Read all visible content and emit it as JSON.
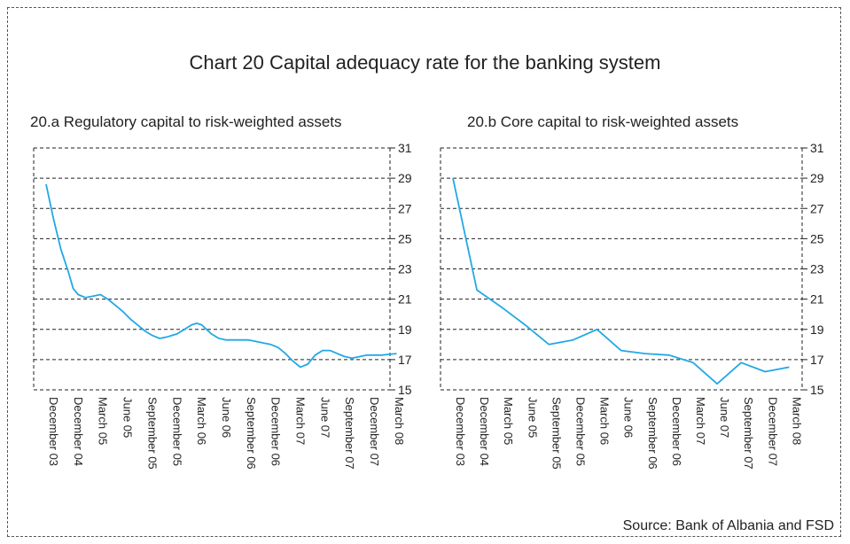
{
  "title": "Chart 20 Capital adequacy rate for the banking system",
  "source": "Source: Bank of Albania and FSD",
  "colors": {
    "line": "#22a8e6",
    "grid": "#222222",
    "text": "#222222"
  },
  "chart_data": [
    {
      "type": "line",
      "title": "20.a Regulatory capital to risk-weighted assets",
      "xlabel": "",
      "ylabel": "",
      "ylim": [
        15,
        31
      ],
      "yticks": [
        "15",
        "17",
        "19",
        "21",
        "23",
        "25",
        "27",
        "29",
        "31"
      ],
      "grid": "horizontal dashed",
      "categories": [
        "December 03",
        "December 04",
        "March 05",
        "June 05",
        "September 05",
        "December 05",
        "March 06",
        "June 06",
        "September 06",
        "December 06",
        "March 07",
        "June 07",
        "September 07",
        "December 07",
        "March 08"
      ],
      "series": [
        {
          "x": [
            0,
            0.3,
            0.6,
            0.9,
            1.1,
            1.3,
            1.6,
            1.9,
            2.2,
            2.5,
            2.8,
            3.1,
            3.4,
            3.7,
            4.0,
            4.3,
            4.6,
            4.9,
            5.1,
            5.3,
            5.6,
            5.9,
            6.1,
            6.3,
            6.5,
            6.7,
            7.0,
            7.3,
            7.6,
            7.9,
            8.2,
            8.5,
            8.8,
            9.1,
            9.4,
            9.7,
            10.0,
            10.3,
            10.6,
            10.9,
            11.2,
            11.5,
            11.8,
            12.1,
            12.4,
            12.7,
            13.0,
            13.3,
            13.6,
            13.9,
            14.2
          ],
          "y": [
            28.6,
            26.3,
            24.3,
            22.8,
            21.7,
            21.3,
            21.1,
            21.2,
            21.3,
            21.0,
            20.6,
            20.2,
            19.7,
            19.3,
            18.9,
            18.6,
            18.4,
            18.5,
            18.6,
            18.7,
            19.0,
            19.3,
            19.4,
            19.3,
            19.0,
            18.7,
            18.4,
            18.3,
            18.3,
            18.3,
            18.3,
            18.2,
            18.1,
            18.0,
            17.8,
            17.4,
            16.9,
            16.5,
            16.7,
            17.3,
            17.6,
            17.6,
            17.4,
            17.2,
            17.1,
            17.2,
            17.3,
            17.3,
            17.3,
            17.35,
            17.4
          ]
        }
      ]
    },
    {
      "type": "line",
      "title": "20.b Core capital to risk-weighted assets",
      "xlabel": "",
      "ylabel": "",
      "ylim": [
        15,
        31
      ],
      "yticks": [
        "15",
        "17",
        "19",
        "21",
        "23",
        "25",
        "27",
        "29",
        "31"
      ],
      "grid": "horizontal dashed",
      "categories": [
        "December 03",
        "December 04",
        "March 05",
        "June 05",
        "September 05",
        "December 05",
        "March 06",
        "June 06",
        "September 06",
        "December 06",
        "March 07",
        "June 07",
        "September 07",
        "December 07",
        "March 08"
      ],
      "series": [
        {
          "x": [
            0,
            1,
            2,
            3,
            4,
            5,
            6,
            7,
            8,
            9,
            10,
            11,
            12,
            13,
            14
          ],
          "y": [
            29.0,
            21.6,
            20.5,
            19.3,
            18.0,
            18.3,
            19.0,
            17.6,
            17.4,
            17.3,
            16.8,
            15.4,
            16.8,
            16.2,
            16.5
          ]
        }
      ]
    }
  ]
}
